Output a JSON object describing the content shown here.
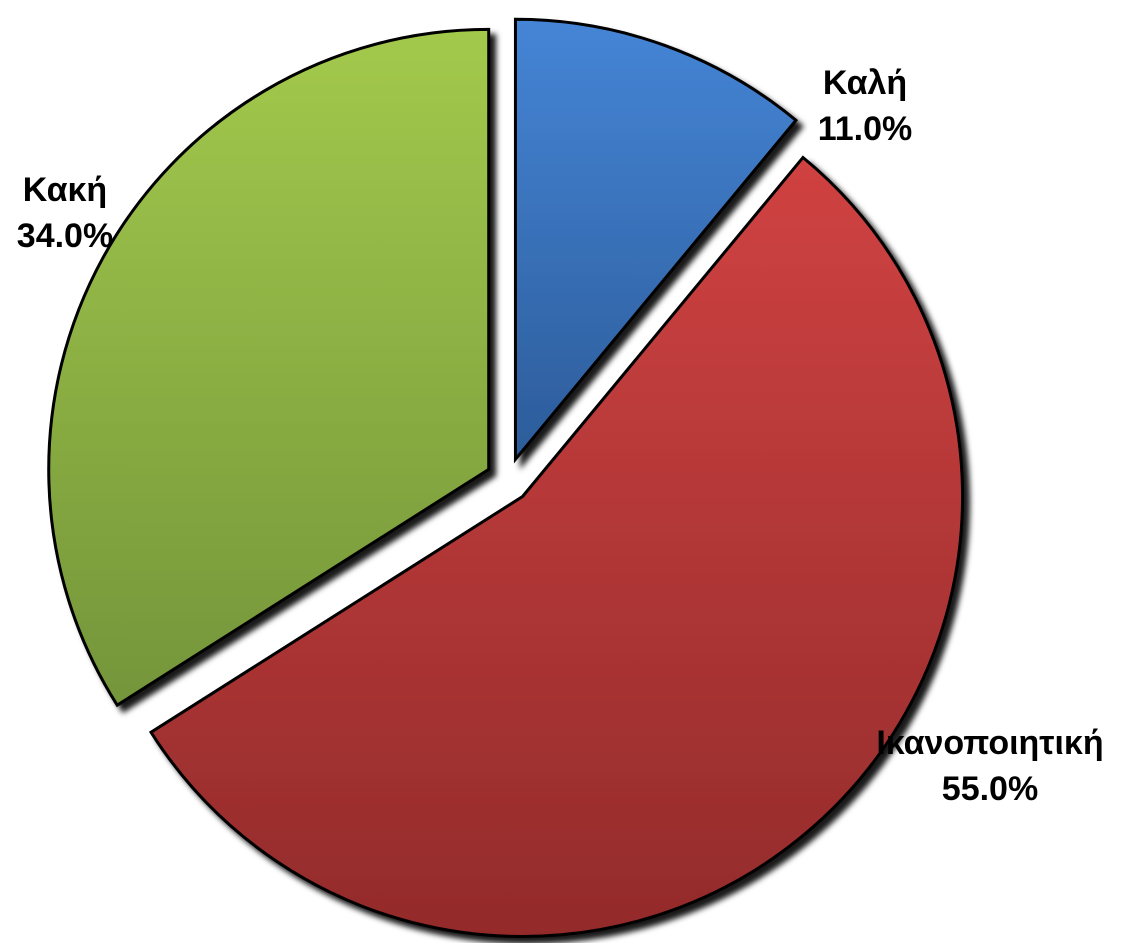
{
  "chart_data": {
    "type": "pie",
    "categories": [
      "Καλή",
      "Ικανοποιητική",
      "Κακή"
    ],
    "values": [
      11,
      55,
      34
    ],
    "value_labels": [
      "11.0%",
      "55.0%",
      "34.0%"
    ],
    "colors": [
      [
        "#4585d6",
        "#2c5c9a"
      ],
      [
        "#d04242",
        "#932b2b"
      ],
      [
        "#a3c94c",
        "#74953a"
      ]
    ]
  }
}
